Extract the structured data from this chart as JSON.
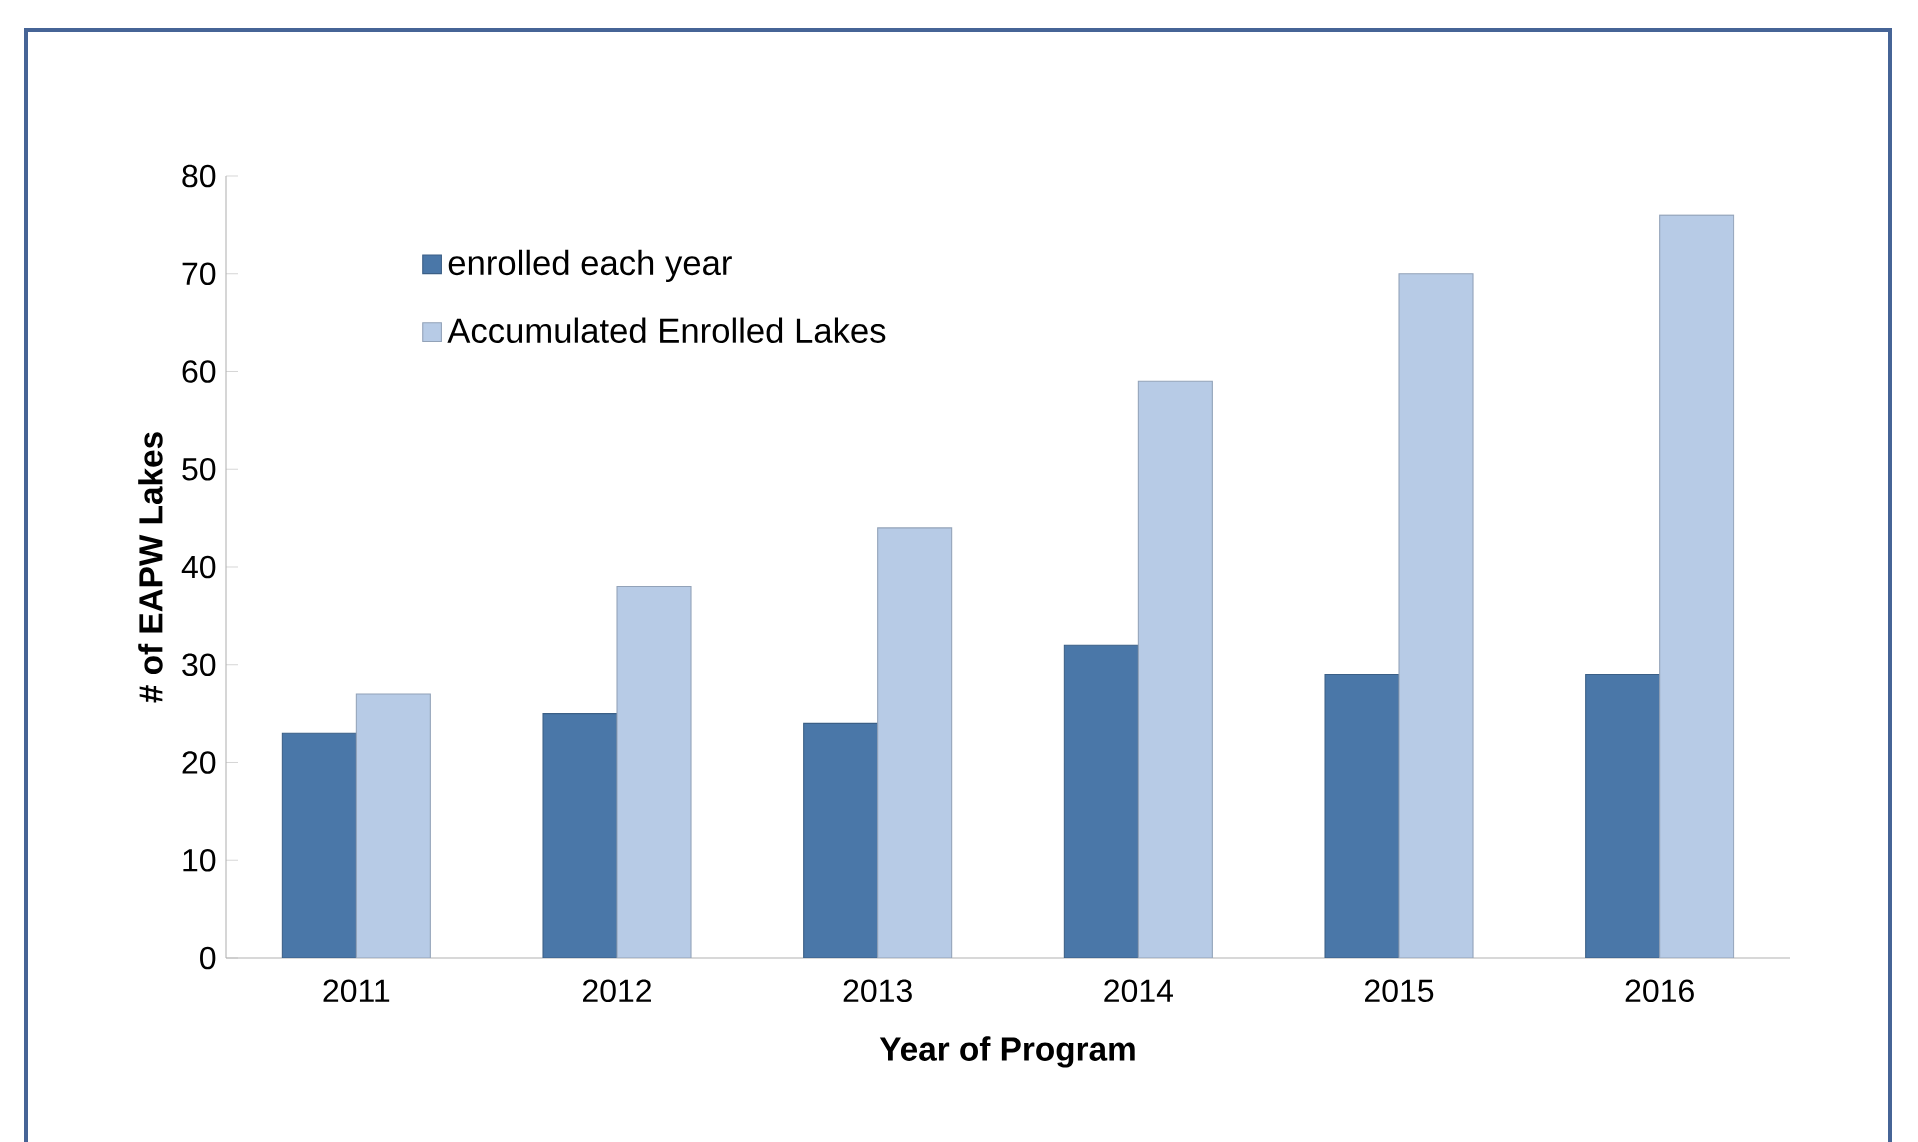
{
  "chart_data": {
    "type": "bar",
    "xlabel": "Year of Program",
    "ylabel": "# of EAPW Lakes",
    "categories": [
      "2011",
      "2012",
      "2013",
      "2014",
      "2015",
      "2016"
    ],
    "series": [
      {
        "name": "enrolled each year",
        "color": "#4a77a8",
        "values": [
          23,
          25,
          24,
          32,
          29,
          29
        ]
      },
      {
        "name": "Accumulated Enrolled Lakes",
        "color": "#b7cbe6",
        "values": [
          27,
          38,
          44,
          59,
          70,
          76
        ]
      }
    ],
    "ylim": [
      0,
      80
    ],
    "yticks": [
      0,
      10,
      20,
      30,
      40,
      50,
      60,
      70,
      80
    ],
    "grid": false,
    "legend": "top left"
  }
}
